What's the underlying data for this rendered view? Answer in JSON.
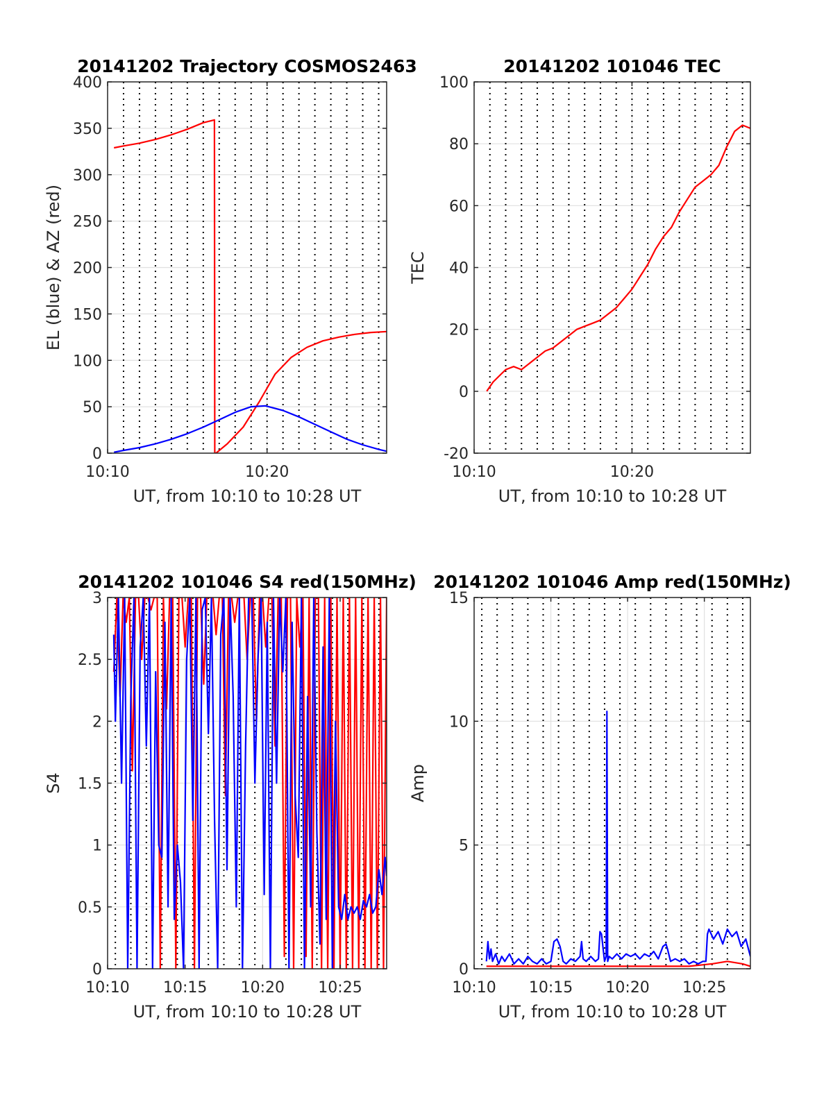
{
  "chart_data": [
    {
      "type": "line",
      "title": "20141202 Trajectory COSMOS2463",
      "xlabel": "UT, from 10:10 to 10:28 UT",
      "ylabel": "EL (blue) & AZ (red)",
      "xlim": [
        10.0,
        27.5
      ],
      "ylim": [
        0,
        400
      ],
      "xticks": [
        {
          "v": 10,
          "label": "10:10"
        },
        {
          "v": 20,
          "label": "10:20"
        }
      ],
      "yticks": [
        0,
        50,
        100,
        150,
        200,
        250,
        300,
        350,
        400
      ],
      "vgrid_minutes": [
        10,
        11,
        12,
        13,
        14,
        15,
        16,
        17,
        18,
        19,
        20,
        21,
        22,
        23,
        24,
        25,
        26,
        27
      ],
      "grid": true,
      "series": [
        {
          "color": "#ff0000",
          "x": [
            10.4,
            11,
            12,
            13,
            14,
            15,
            16,
            16.7,
            16.72,
            16.8,
            17.5,
            18.5,
            19.5,
            20.5,
            21.5,
            22.5,
            23.5,
            24.5,
            25.5,
            26.5,
            27.5
          ],
          "y": [
            329,
            331,
            334,
            338,
            343,
            349,
            356,
            359,
            0,
            0,
            10,
            28,
            55,
            85,
            103,
            114,
            121,
            125,
            128,
            130,
            131
          ]
        },
        {
          "color": "#0000ff",
          "x": [
            10.4,
            11,
            12,
            13,
            14,
            15,
            16,
            17,
            18,
            19,
            19.9,
            21,
            22,
            23,
            24,
            25,
            26,
            27,
            27.5
          ],
          "y": [
            1,
            3,
            6,
            10,
            15,
            21,
            28,
            36,
            44,
            50,
            51,
            46,
            39,
            31,
            23,
            15,
            9,
            4,
            2
          ]
        }
      ]
    },
    {
      "type": "line",
      "title": "20141202 101046 TEC",
      "xlabel": "UT, from 10:10 to 10:28 UT",
      "ylabel": "TEC",
      "xlim": [
        10.0,
        27.5
      ],
      "ylim": [
        -20,
        100
      ],
      "xticks": [
        {
          "v": 10,
          "label": "10:10"
        },
        {
          "v": 20,
          "label": "10:20"
        }
      ],
      "yticks": [
        -20,
        0,
        20,
        40,
        60,
        80,
        100
      ],
      "vgrid_minutes": [
        10,
        11,
        12,
        13,
        14,
        15,
        16,
        17,
        18,
        19,
        20,
        21,
        22,
        23,
        24,
        25,
        26,
        27
      ],
      "grid": true,
      "series": [
        {
          "color": "#ff0000",
          "x": [
            10.8,
            11.2,
            11.6,
            12,
            12.5,
            13,
            13.5,
            14,
            14.5,
            15,
            15.5,
            16,
            16.5,
            17,
            17.5,
            18,
            18.5,
            19,
            19.5,
            20,
            20.5,
            21,
            21.5,
            22,
            22.5,
            23,
            23.5,
            24,
            24.5,
            25,
            25.5,
            26,
            26.5,
            27,
            27.5
          ],
          "y": [
            0,
            3,
            5,
            7,
            8,
            7,
            9,
            11,
            13,
            14,
            16,
            18,
            20,
            21,
            22,
            23,
            25,
            27,
            30,
            33,
            37,
            41,
            46,
            50,
            53,
            58,
            62,
            66,
            68,
            70,
            73,
            79,
            84,
            86,
            85
          ]
        }
      ]
    },
    {
      "type": "line",
      "title": "20141202 101046 S4 red(150MHz)",
      "xlabel": "UT, from 10:10 to 10:28 UT",
      "ylabel": "S4",
      "xlim": [
        10.0,
        28.0
      ],
      "ylim": [
        0,
        3
      ],
      "xticks": [
        {
          "v": 10,
          "label": "10:10"
        },
        {
          "v": 15,
          "label": "10:15"
        },
        {
          "v": 20,
          "label": "10:20"
        },
        {
          "v": 25,
          "label": "10:25"
        }
      ],
      "yticks": [
        0,
        0.5,
        1,
        1.5,
        2,
        2.5,
        3
      ],
      "vgrid_minutes": [
        10.5,
        11.5,
        12.5,
        13.5,
        14.5,
        15.5,
        16.5,
        17.5,
        18.5,
        19.5,
        20.5,
        21.5,
        22.5,
        23.5,
        24.5,
        25.5,
        26.5,
        27.5
      ],
      "grid": true,
      "series": [
        {
          "color": "#ff0000",
          "x": [
            10.4,
            10.6,
            10.8,
            11.0,
            11.2,
            11.4,
            11.6,
            11.8,
            12.0,
            12.2,
            12.4,
            12.6,
            12.8,
            13.0,
            13.2,
            13.4,
            13.6,
            13.8,
            14.0,
            14.2,
            14.4,
            14.6,
            14.8,
            15.0,
            15.2,
            15.4,
            15.6,
            15.8,
            16.0,
            16.2,
            16.4,
            16.6,
            16.8,
            17.0,
            17.2,
            17.4,
            17.6,
            17.8,
            18.0,
            18.2,
            18.4,
            18.6,
            18.8,
            19.0,
            19.2,
            19.4,
            19.6,
            19.8,
            20.0,
            20.2,
            20.4,
            20.6,
            20.8,
            21.0,
            21.2,
            21.4,
            21.6,
            21.8,
            22.0,
            22.2,
            22.4,
            22.6,
            22.8,
            23.0,
            23.2,
            23.4,
            23.6,
            23.8,
            24.0,
            24.2,
            24.4,
            24.6,
            24.8,
            25.0,
            25.2,
            25.4,
            25.6,
            25.8,
            26.0,
            26.2,
            26.4,
            26.6,
            26.8,
            27.0,
            27.2,
            27.4,
            27.6,
            27.8,
            28.0
          ],
          "y": [
            2.4,
            3,
            2.2,
            3,
            2.8,
            3,
            1.6,
            3,
            3,
            2.5,
            3,
            3,
            2.9,
            3,
            3,
            0.0,
            3,
            2.1,
            3,
            3,
            0.0,
            3,
            3,
            2.6,
            3,
            3,
            0.0,
            3,
            3,
            2.3,
            3,
            3,
            3,
            2.7,
            3,
            3,
            1.4,
            3,
            3,
            2.8,
            3,
            3,
            3,
            2.5,
            3,
            3,
            2.0,
            3,
            3,
            2.6,
            3,
            3,
            1.8,
            3,
            3,
            0.1,
            3,
            3,
            0.0,
            3,
            2.6,
            3,
            0.1,
            3,
            0.0,
            3,
            3,
            0.0,
            3,
            0.0,
            3,
            0.0,
            3,
            0.0,
            3,
            0.0,
            3,
            0.0,
            3,
            0.0,
            3,
            0.0,
            3,
            0.0,
            3,
            0.0,
            3,
            0.0,
            3
          ]
        },
        {
          "color": "#0000ff",
          "x": [
            10.4,
            10.5,
            10.7,
            10.9,
            11.1,
            11.3,
            11.5,
            11.7,
            11.9,
            12.1,
            12.3,
            12.5,
            12.7,
            12.9,
            13.1,
            13.3,
            13.5,
            13.7,
            13.9,
            14.1,
            14.3,
            14.5,
            14.7,
            14.9,
            15.1,
            15.3,
            15.5,
            15.7,
            15.9,
            16.1,
            16.3,
            16.5,
            16.7,
            16.9,
            17.1,
            17.3,
            17.5,
            17.7,
            17.9,
            18.1,
            18.3,
            18.5,
            18.7,
            18.9,
            19.1,
            19.3,
            19.5,
            19.7,
            19.9,
            20.1,
            20.3,
            20.5,
            20.7,
            20.9,
            21.1,
            21.3,
            21.5,
            21.7,
            21.9,
            22.1,
            22.3,
            22.5,
            22.7,
            22.9,
            23.1,
            23.3,
            23.5,
            23.7,
            23.9,
            24.1,
            24.3,
            24.5,
            24.7,
            24.9,
            25.1,
            25.3,
            25.5,
            25.7,
            25.9,
            26.1,
            26.3,
            26.5,
            26.7,
            26.9,
            27.1,
            27.3,
            27.5,
            27.7,
            27.9,
            28.0
          ],
          "y": [
            2.7,
            2.0,
            3,
            1.5,
            3,
            0.0,
            2.2,
            3,
            0.0,
            2.6,
            3,
            1.8,
            3,
            0.0,
            2.4,
            1.0,
            0.9,
            2.8,
            0.5,
            3,
            0.4,
            1.0,
            0.7,
            0.0,
            2.5,
            3,
            1.2,
            3,
            0.0,
            2.9,
            3,
            1.9,
            3,
            1.2,
            0.0,
            2.7,
            3,
            0.8,
            3,
            2.2,
            0.5,
            3,
            0.0,
            1.8,
            3,
            3,
            1.5,
            2.5,
            3,
            0.6,
            2.8,
            0.0,
            3,
            1.5,
            3,
            2.4,
            3,
            0.0,
            2.8,
            1.4,
            0.9,
            3,
            0.0,
            2.2,
            0.5,
            3,
            1.1,
            0.2,
            2.6,
            0.4,
            3,
            0.0,
            2.0,
            0.5,
            0.4,
            0.6,
            0.4,
            0.5,
            0.45,
            0.5,
            0.4,
            0.55,
            0.5,
            0.6,
            0.45,
            0.5,
            0.8,
            0.6,
            0.9,
            0.75
          ]
        }
      ]
    },
    {
      "type": "line",
      "title": "20141202 101046 Amp red(150MHz)",
      "xlabel": "UT, from 10:10 to 10:28 UT",
      "ylabel": "Amp",
      "xlim": [
        10.0,
        28.0
      ],
      "ylim": [
        0,
        15
      ],
      "xticks": [
        {
          "v": 10,
          "label": "10:10"
        },
        {
          "v": 15,
          "label": "10:15"
        },
        {
          "v": 20,
          "label": "10:20"
        },
        {
          "v": 25,
          "label": "10:25"
        }
      ],
      "yticks": [
        0,
        5,
        10,
        15
      ],
      "vgrid_minutes": [
        10.5,
        11.5,
        12.5,
        13.5,
        14.5,
        15.5,
        16.5,
        17.5,
        18.5,
        19.5,
        20.5,
        21.5,
        22.5,
        23.5,
        24.5,
        25.5,
        26.5,
        27.5
      ],
      "grid": true,
      "series": [
        {
          "color": "#ff0000",
          "x": [
            10.8,
            12,
            14,
            16,
            18,
            20,
            22,
            24,
            25.5,
            26.5,
            27.5,
            28.0
          ],
          "y": [
            0.1,
            0.1,
            0.1,
            0.1,
            0.1,
            0.1,
            0.1,
            0.1,
            0.2,
            0.3,
            0.2,
            0.1
          ]
        },
        {
          "color": "#0000ff",
          "x": [
            10.8,
            10.9,
            11.0,
            11.1,
            11.2,
            11.4,
            11.6,
            11.8,
            12.0,
            12.3,
            12.6,
            12.9,
            13.2,
            13.5,
            13.8,
            14.1,
            14.4,
            14.7,
            15.0,
            15.2,
            15.4,
            15.6,
            15.8,
            16.0,
            16.3,
            16.6,
            16.9,
            17.0,
            17.1,
            17.3,
            17.6,
            17.9,
            18.1,
            18.2,
            18.3,
            18.5,
            18.6,
            18.65,
            18.7,
            18.8,
            19.0,
            19.3,
            19.6,
            19.9,
            20.2,
            20.5,
            20.8,
            21.1,
            21.4,
            21.7,
            22.0,
            22.3,
            22.5,
            22.6,
            22.8,
            23.1,
            23.4,
            23.7,
            24.0,
            24.3,
            24.6,
            24.9,
            25.1,
            25.2,
            25.3,
            25.6,
            25.9,
            26.2,
            26.5,
            26.8,
            27.1,
            27.4,
            27.7,
            28.0
          ],
          "y": [
            0.3,
            1.1,
            0.4,
            0.8,
            0.3,
            0.6,
            0.2,
            0.5,
            0.3,
            0.6,
            0.2,
            0.4,
            0.2,
            0.5,
            0.3,
            0.2,
            0.4,
            0.2,
            0.3,
            1.1,
            1.2,
            0.9,
            0.3,
            0.2,
            0.4,
            0.3,
            0.5,
            1.1,
            0.4,
            0.3,
            0.5,
            0.3,
            0.4,
            1.5,
            1.4,
            0.3,
            0.5,
            10.4,
            0.3,
            0.5,
            0.4,
            0.6,
            0.4,
            0.6,
            0.5,
            0.6,
            0.4,
            0.6,
            0.5,
            0.7,
            0.4,
            0.9,
            1.0,
            0.8,
            0.3,
            0.4,
            0.3,
            0.4,
            0.2,
            0.3,
            0.2,
            0.3,
            0.3,
            1.4,
            1.6,
            1.2,
            1.5,
            1.0,
            1.6,
            1.3,
            1.5,
            0.9,
            1.2,
            0.5
          ]
        }
      ]
    }
  ]
}
